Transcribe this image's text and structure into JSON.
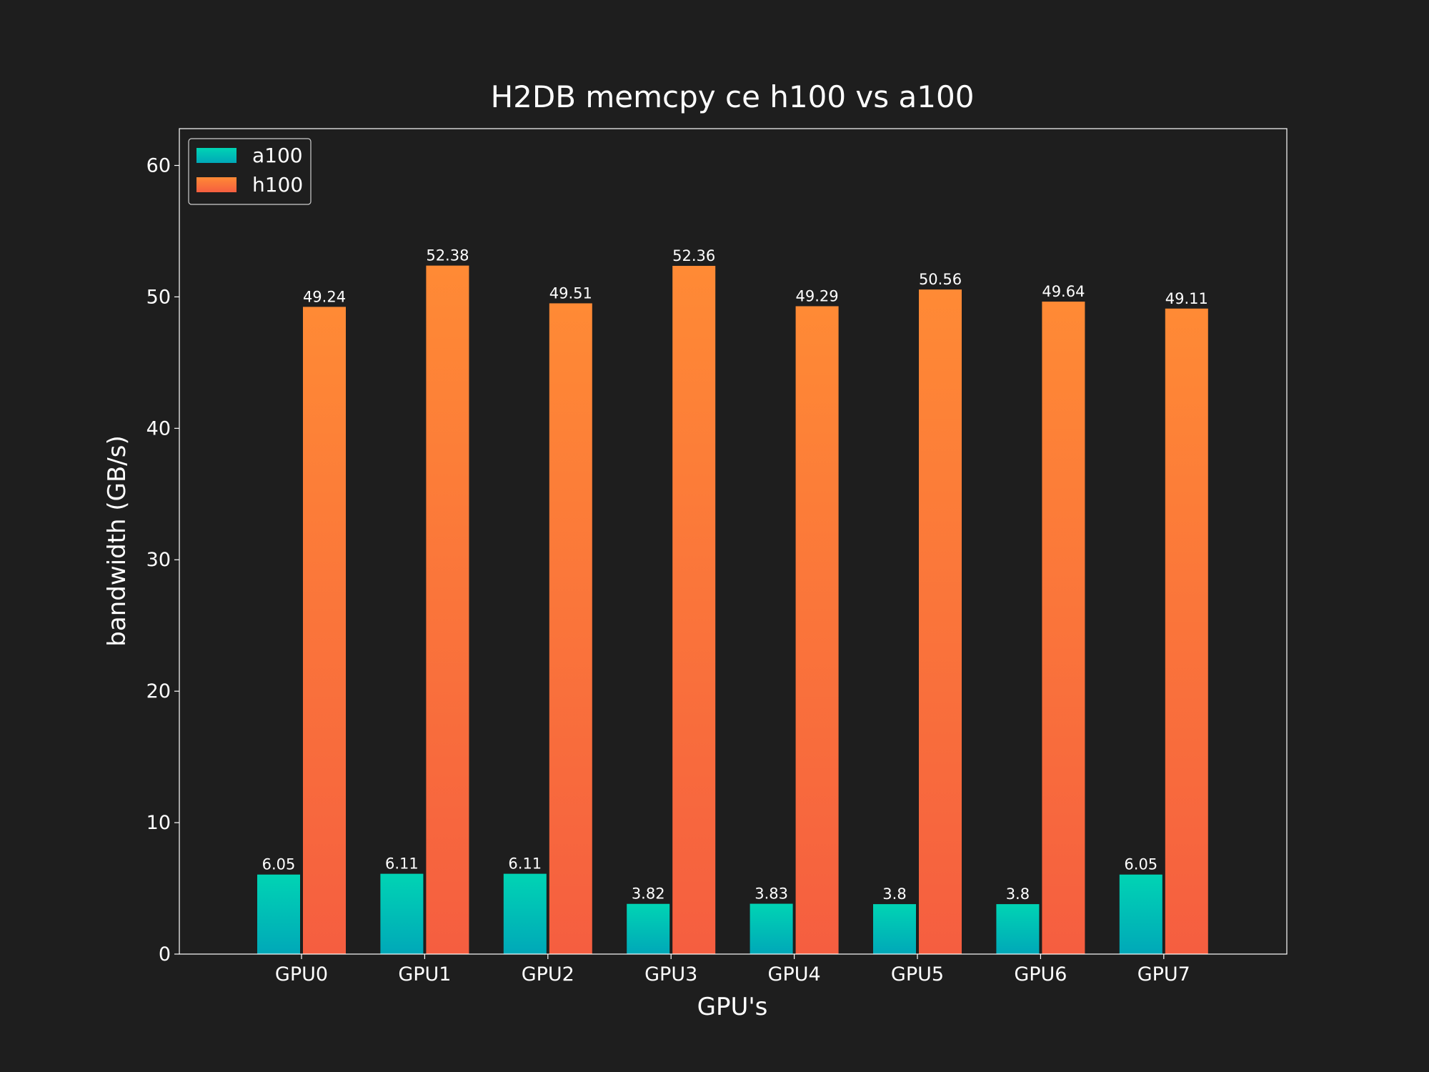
{
  "chart_data": {
    "type": "bar",
    "title": "H2DB memcpy ce h100 vs a100",
    "xlabel": "GPU's",
    "ylabel": "bandwidth (GB/s)",
    "categories": [
      "GPU0",
      "GPU1",
      "GPU2",
      "GPU3",
      "GPU4",
      "GPU5",
      "GPU6",
      "GPU7"
    ],
    "series": [
      {
        "name": "a100",
        "values": [
          6.05,
          6.11,
          6.11,
          3.82,
          3.83,
          3.8,
          3.8,
          6.05
        ],
        "labels": [
          "6.05",
          "6.11",
          "6.11",
          "3.82",
          "3.83",
          "3.8",
          "3.8",
          "6.05"
        ],
        "color_top": "#00d4b4",
        "color_bottom": "#00a8b8"
      },
      {
        "name": "h100",
        "values": [
          49.24,
          52.38,
          49.51,
          52.36,
          49.29,
          50.56,
          49.64,
          49.11
        ],
        "labels": [
          "49.24",
          "52.38",
          "49.51",
          "52.36",
          "49.29",
          "50.56",
          "49.64",
          "49.11"
        ],
        "color_top": "#ff8a35",
        "color_bottom": "#f55e40"
      }
    ],
    "ylim": [
      0,
      62.8
    ],
    "yticks": [
      0,
      10,
      20,
      30,
      40,
      50,
      60
    ],
    "ytick_labels": [
      "0",
      "10",
      "20",
      "30",
      "40",
      "50",
      "60"
    ],
    "grid": false,
    "legend_position": "top-left",
    "background_color": "#1e1e1e",
    "frame_color": "#ffffff",
    "text_color": "#ffffff"
  }
}
